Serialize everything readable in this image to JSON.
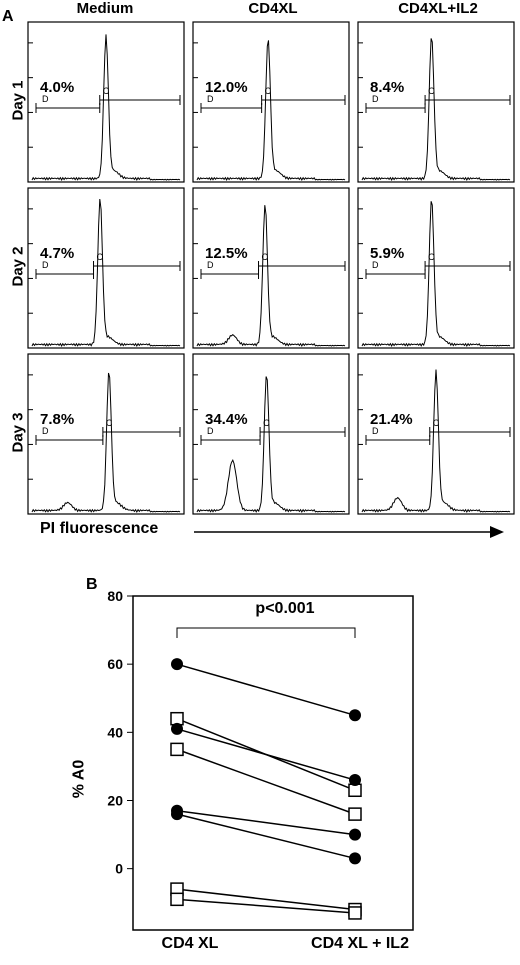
{
  "chart_data": [
    {
      "panel": "A",
      "type": "histogram-grid",
      "columns": [
        "Medium",
        "CD4XL",
        "CD4XL+IL2"
      ],
      "rows": [
        "Day 1",
        "Day 2",
        "Day 3"
      ],
      "xlabel": "PI fluorescence",
      "gate_labels": {
        "left": "D",
        "right": "C"
      },
      "cells": [
        [
          {
            "pct": "4.0%"
          },
          {
            "pct": "12.0%"
          },
          {
            "pct": "8.4%"
          }
        ],
        [
          {
            "pct": "4.7%"
          },
          {
            "pct": "12.5%"
          },
          {
            "pct": "5.9%"
          }
        ],
        [
          {
            "pct": "7.8%"
          },
          {
            "pct": "34.4%"
          },
          {
            "pct": "21.4%"
          }
        ]
      ]
    },
    {
      "panel": "B",
      "type": "scatter",
      "categories": [
        "CD4 XL",
        "CD4 XL + IL2"
      ],
      "ylabel": "% A0",
      "yticks": [
        0,
        20,
        40,
        60,
        80
      ],
      "ylim": [
        -18,
        80
      ],
      "annotation": "p<0.001",
      "pairs": [
        {
          "marker": "circle",
          "values": [
            60,
            45
          ]
        },
        {
          "marker": "square",
          "values": [
            44,
            23
          ]
        },
        {
          "marker": "circle",
          "values": [
            41,
            26
          ]
        },
        {
          "marker": "square",
          "values": [
            35,
            16
          ]
        },
        {
          "marker": "circle",
          "values": [
            17,
            10
          ]
        },
        {
          "marker": "circle",
          "values": [
            16,
            3
          ]
        },
        {
          "marker": "square",
          "values": [
            -6,
            -12
          ]
        },
        {
          "marker": "square",
          "values": [
            -9,
            -13
          ]
        }
      ]
    }
  ]
}
